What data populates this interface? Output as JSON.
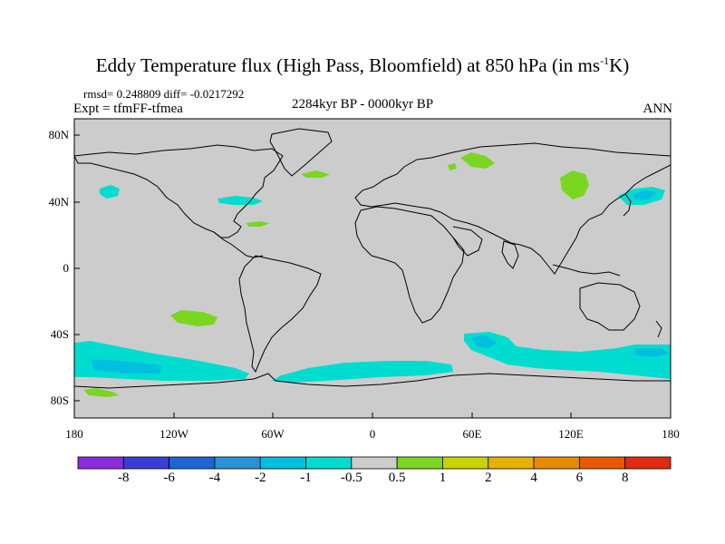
{
  "title_main": "Eddy Temperature flux (High Pass, Bloomfield) at 850 hPa (in ms",
  "title_sup": "-1",
  "title_end": "K)",
  "stats": "rmsd= 0.248809 diff= -0.0217292",
  "expt": "Expt = tfmFF-tfmea",
  "period": "2284kyr BP - 0000kyr BP",
  "season": "ANN",
  "lat_labels": [
    "80N",
    "40N",
    "0",
    "40S",
    "80S"
  ],
  "lon_labels": [
    "180",
    "120W",
    "60W",
    "0",
    "60E",
    "120E",
    "180"
  ],
  "colorbar": {
    "colors": [
      "#8a2be2",
      "#3c3cd8",
      "#1f63d6",
      "#2a93d8",
      "#00c0e0",
      "#00ddd0",
      "#cccccc",
      "#7ad61f",
      "#c8d400",
      "#e8b000",
      "#e88a00",
      "#e85800",
      "#e22a10"
    ],
    "labels": [
      "-8",
      "-6",
      "-4",
      "-2",
      "-1",
      "-0.5",
      "0.5",
      "1",
      "2",
      "4",
      "6",
      "8"
    ]
  },
  "colors": {
    "land_ocean_bg": "#cccccc",
    "negative_fill": "#00ddd0",
    "negative_strong": "#00c0e0",
    "positive_fill": "#7ad61f"
  }
}
